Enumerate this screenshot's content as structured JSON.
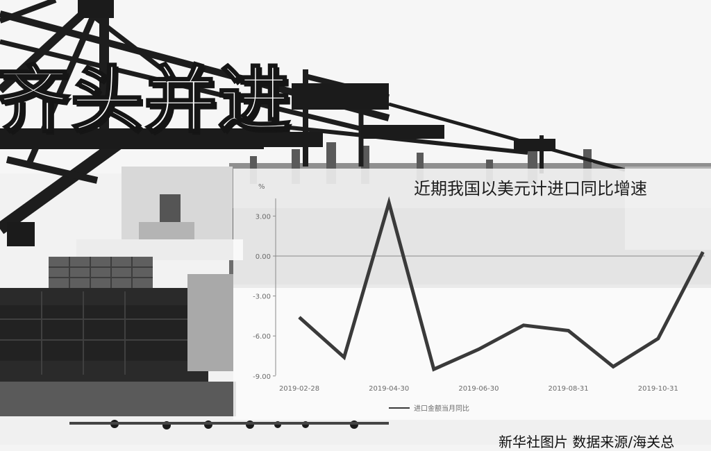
{
  "headline": "齐头并进",
  "caption": "新华社图片 数据来源/海关总",
  "chart_data": {
    "type": "line",
    "title": "近期我国以美元计进口同比增速",
    "unit_label": "%",
    "ylim": [
      -9.0,
      5.0
    ],
    "y_ticks": [
      3.0,
      0.0,
      -3.0,
      -6.0,
      -9.0
    ],
    "y_tick_labels": [
      "3.00",
      "0.00",
      "-3.00",
      "-6.00",
      "-9.00"
    ],
    "x_tick_labels": [
      "2019-02-28",
      "2019-04-30",
      "2019-06-30",
      "2019-08-31",
      "2019-10-31"
    ],
    "x_tick_index": [
      0,
      2,
      4,
      6,
      8
    ],
    "grid": false,
    "legend_position": "bottom",
    "series": [
      {
        "name": "进口金额当月同比",
        "color": "#3a3a3a",
        "x": [
          "2019-02-28",
          "2019-03-31",
          "2019-04-30",
          "2019-05-31",
          "2019-06-30",
          "2019-07-31",
          "2019-08-31",
          "2019-09-30",
          "2019-10-31",
          "2019-11-30"
        ],
        "values": [
          -4.6,
          -7.6,
          4.0,
          -8.5,
          -7.0,
          -5.2,
          -5.6,
          -8.3,
          -6.2,
          0.3
        ]
      }
    ]
  },
  "colors": {
    "panel": "#fcfcfc",
    "line": "#3a3a3a",
    "axis": "#8a8a8a"
  }
}
